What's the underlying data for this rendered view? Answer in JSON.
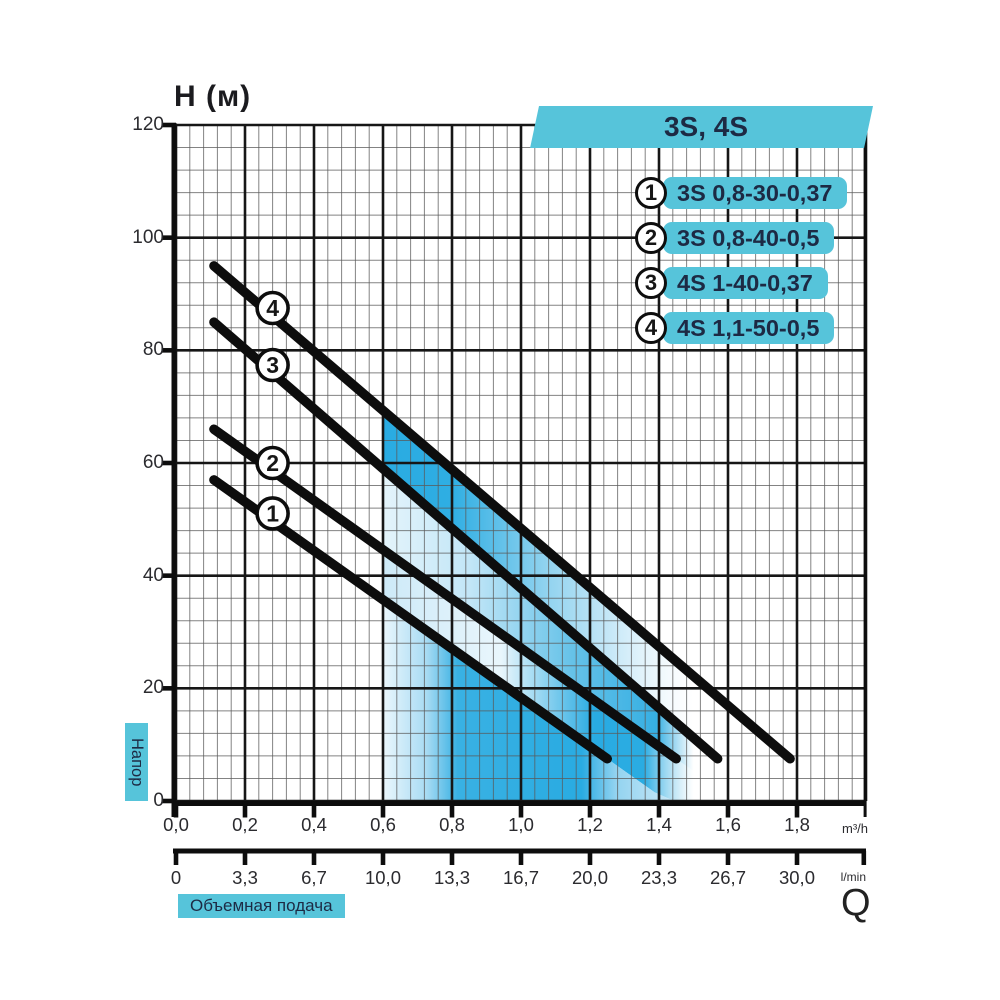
{
  "title": "H (м)",
  "banner": "3S, 4S",
  "legend": [
    {
      "num": "1",
      "label": "3S 0,8-30-0,37"
    },
    {
      "num": "2",
      "label": "3S 0,8-40-0,5"
    },
    {
      "num": "3",
      "label": "4S 1-40-0,37"
    },
    {
      "num": "4",
      "label": "4S 1,1-50-0,5"
    }
  ],
  "y_axis": {
    "side_label": "Напор",
    "tick_values": [
      120,
      100,
      80,
      60,
      40,
      20,
      0
    ],
    "tick_labels": [
      "120",
      "100",
      "80",
      "60",
      "40",
      "20",
      "0"
    ]
  },
  "x_axis_m3h": {
    "unit": "m³/h",
    "tick_values": [
      0,
      0.2,
      0.4,
      0.6,
      0.8,
      1.0,
      1.2,
      1.4,
      1.6,
      1.8
    ],
    "tick_labels": [
      "0,0",
      "0,2",
      "0,4",
      "0,6",
      "0,8",
      "1,0",
      "1,2",
      "1,4",
      "1,6",
      "1,8"
    ]
  },
  "x_axis_lmin": {
    "unit": "l/min",
    "tick_values_m3h": [
      0,
      0.2,
      0.4,
      0.6,
      0.8,
      1.0,
      1.2,
      1.4,
      1.6,
      1.8
    ],
    "tick_labels": [
      "0",
      "3,3",
      "6,7",
      "10,0",
      "13,3",
      "16,7",
      "20,0",
      "23,3",
      "26,7",
      "30,0"
    ]
  },
  "flow_axis_label": "Объемная подача",
  "q_symbol": "Q",
  "colors": {
    "accent_cyan": "#56C4DA",
    "region_blue": "#29ABE2",
    "navy_text": "#1d2a44",
    "curve_black": "#0d0d0d"
  },
  "chart_data": {
    "type": "line",
    "title": "3S, 4S",
    "ylabel": "H (м)",
    "xlabel_primary": "Q, m³/h",
    "xlabel_secondary": "Q, l/min",
    "x_range_m3h": [
      0,
      2.0
    ],
    "y_range_m": [
      0,
      120
    ],
    "grid": "major+minor, 5 minor divisions per major",
    "legend_position": "top-right",
    "series": [
      {
        "id": 1,
        "name": "3S 0,8-30-0,37",
        "points_q_h": [
          [
            0.11,
            57
          ],
          [
            1.25,
            7.5
          ]
        ]
      },
      {
        "id": 2,
        "name": "3S 0,8-40-0,5",
        "points_q_h": [
          [
            0.11,
            66
          ],
          [
            1.45,
            7.5
          ]
        ]
      },
      {
        "id": 3,
        "name": "4S 1-40-0,37",
        "points_q_h": [
          [
            0.11,
            85
          ],
          [
            1.57,
            7.5
          ]
        ]
      },
      {
        "id": 4,
        "name": "4S 1,1-50-0,5",
        "points_q_h": [
          [
            0.11,
            95
          ],
          [
            1.78,
            7.5
          ]
        ]
      }
    ],
    "curve_markers": [
      {
        "label": "1",
        "series_id": 1,
        "q": 0.28
      },
      {
        "label": "2",
        "series_id": 2,
        "q": 0.28
      },
      {
        "label": "3",
        "series_id": 3,
        "q": 0.28
      },
      {
        "label": "4",
        "series_id": 4,
        "q": 0.28
      }
    ],
    "shaded_operating_range": {
      "q_from": 0.6,
      "q_to": 1.5
    }
  }
}
